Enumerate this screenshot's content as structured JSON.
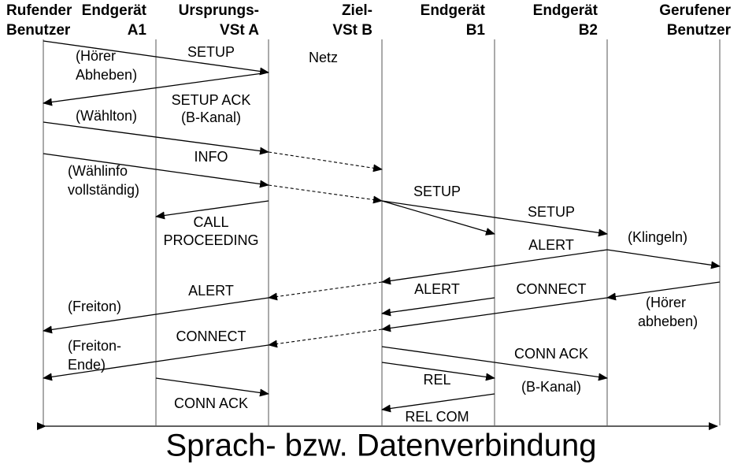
{
  "participants": [
    [
      "Rufender",
      "Benutzer"
    ],
    [
      "Endgerät",
      "A1"
    ],
    [
      "Ursprungs-",
      "VSt A"
    ],
    [
      "Ziel-",
      "VSt B"
    ],
    [
      "Endgerät",
      "B1"
    ],
    [
      "Endgerät",
      "B2"
    ],
    [
      "Gerufener",
      "Benutzer"
    ]
  ],
  "network": "Netz",
  "messages": [
    "SETUP",
    "SETUP ACK",
    "(B-Kanal)",
    "INFO",
    "SETUP",
    "SETUP",
    "CALL",
    "PROCEEDING",
    "ALERT",
    "ALERT",
    "ALERT",
    "CONNECT",
    "CONNECT",
    "CONN ACK",
    "(B-Kanal)",
    "REL",
    "CONN ACK",
    "REL COM"
  ],
  "notes": [
    [
      "(Hörer",
      "Abheben)"
    ],
    [
      "(Wählton)"
    ],
    [
      "(Wählinfo",
      "vollständig)"
    ],
    [
      "(Klingeln)"
    ],
    [
      "(Hörer",
      "abheben)"
    ],
    [
      "(Freiton)"
    ],
    [
      "(Freiton-",
      "Ende)"
    ]
  ],
  "footer": "Sprach- bzw. Datenverbindung"
}
